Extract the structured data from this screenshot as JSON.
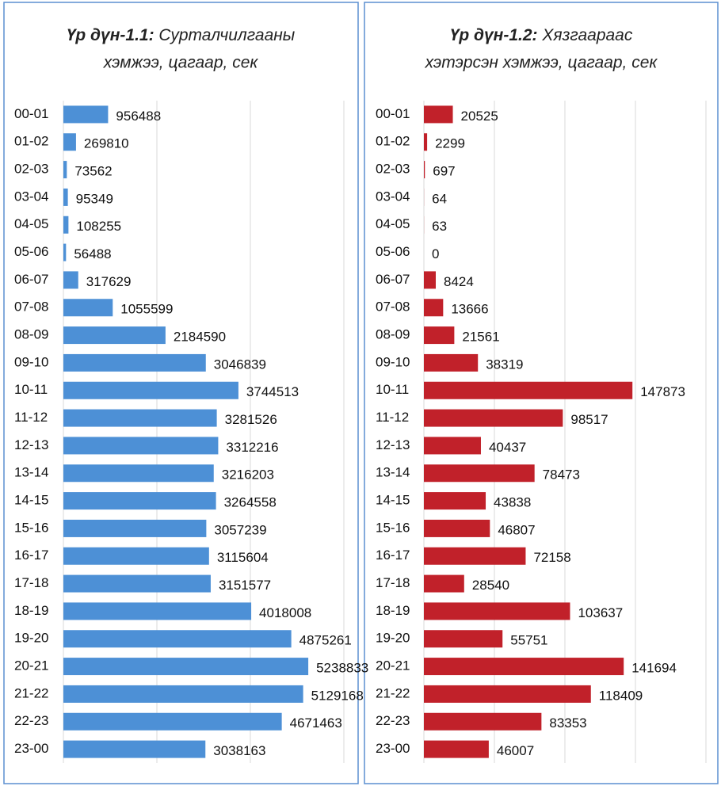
{
  "chart_data": [
    {
      "type": "bar",
      "orientation": "horizontal",
      "title_label": "Үр дүн-1.1:",
      "title": "Сурталчилгааны хэмжээ, цагаар, сек",
      "color": "#4d90d6",
      "categories": [
        "00-01",
        "01-02",
        "02-03",
        "03-04",
        "04-05",
        "05-06",
        "06-07",
        "07-08",
        "08-09",
        "09-10",
        "10-11",
        "11-12",
        "12-13",
        "13-14",
        "14-15",
        "15-16",
        "16-17",
        "17-18",
        "18-19",
        "19-20",
        "20-21",
        "21-22",
        "22-23",
        "23-00"
      ],
      "values": [
        956488,
        269810,
        73562,
        95349,
        108255,
        56488,
        317629,
        1055599,
        2184590,
        3046839,
        3744513,
        3281526,
        3312216,
        3216203,
        3264558,
        3057239,
        3115604,
        3151577,
        4018008,
        4875261,
        5238833,
        5129168,
        4671463,
        3038163
      ],
      "xlim": [
        0,
        6000000
      ],
      "xticks": [
        0,
        2000000,
        4000000,
        6000000
      ],
      "grid": true
    },
    {
      "type": "bar",
      "orientation": "horizontal",
      "title_label": "Үр дүн-1.2:",
      "title": "Хязгаараас хэтэрсэн хэмжээ, цагаар, сек",
      "color": "#c1212a",
      "categories": [
        "00-01",
        "01-02",
        "02-03",
        "03-04",
        "04-05",
        "05-06",
        "06-07",
        "07-08",
        "08-09",
        "09-10",
        "10-11",
        "11-12",
        "12-13",
        "13-14",
        "14-15",
        "15-16",
        "16-17",
        "17-18",
        "18-19",
        "19-20",
        "20-21",
        "21-22",
        "22-23",
        "23-00"
      ],
      "values": [
        20525,
        2299,
        697,
        64,
        63,
        0,
        8424,
        13666,
        21561,
        38319,
        147873,
        98517,
        40437,
        78473,
        43838,
        46807,
        72158,
        28540,
        103637,
        55751,
        141694,
        118409,
        83353,
        46007
      ],
      "xlim": [
        0,
        200000
      ],
      "xticks": [
        0,
        50000,
        100000,
        150000,
        200000
      ],
      "grid": true
    }
  ]
}
